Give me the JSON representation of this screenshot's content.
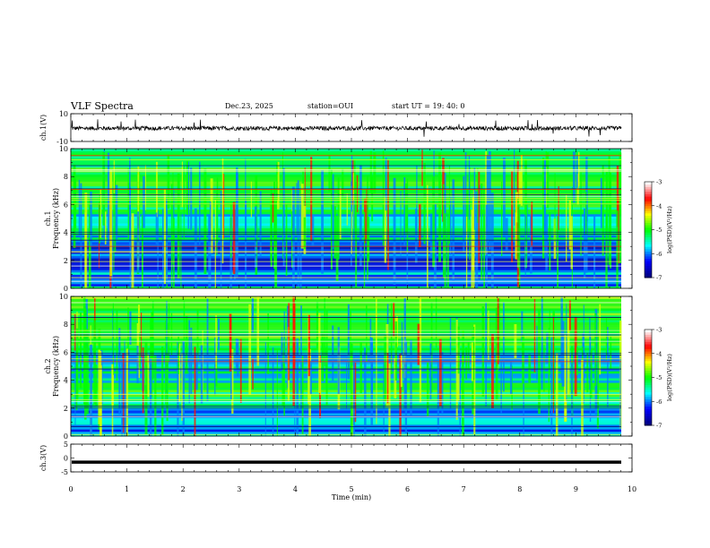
{
  "header": {
    "title": "VLF Spectra",
    "date": "Dec.23, 2025",
    "station": "station=OUI",
    "start_ut": "start  UT =   19: 40: 0"
  },
  "chart_data": [
    {
      "type": "line",
      "name": "ch1-waveform",
      "ylabel": "ch.1(V)",
      "ylim": [
        -10,
        10
      ],
      "yticks": [
        "10",
        "-10"
      ],
      "xlim": [
        0,
        10
      ],
      "description_values": {
        "baseline_v": -0.5,
        "noise_amplitude_v": 1.5
      }
    },
    {
      "type": "heatmap",
      "name": "ch1-spectrogram",
      "ylabel_line1": "ch.1",
      "ylabel_line2": "Frequency (kHz)",
      "ylim": [
        0,
        10
      ],
      "yticks": [
        "0",
        "2",
        "4",
        "6",
        "8",
        "10"
      ],
      "xlim": [
        0,
        10
      ],
      "colorbar": {
        "label": "log(PSD)(V²/Hz)",
        "range": [
          -7,
          -3
        ],
        "ticks": [
          "-3",
          "-4",
          "-5",
          "-6",
          "-7"
        ]
      }
    },
    {
      "type": "heatmap",
      "name": "ch2-spectrogram",
      "ylabel_line1": "ch.2",
      "ylabel_line2": "Frequency (kHz)",
      "ylim": [
        0,
        10
      ],
      "yticks": [
        "0",
        "2",
        "4",
        "6",
        "8",
        "10"
      ],
      "xlim": [
        0,
        10
      ],
      "colorbar": {
        "label": "log(PSD)(V²/Hz)",
        "range": [
          -7,
          -3
        ],
        "ticks": [
          "-3",
          "-4",
          "-5",
          "-6",
          "-7"
        ]
      }
    },
    {
      "type": "line",
      "name": "ch3-waveform",
      "ylabel": "ch.3(V)",
      "ylim": [
        -5,
        5
      ],
      "yticks": [
        "5",
        "0",
        "-5"
      ],
      "xlim": [
        0,
        10
      ],
      "description_values": {
        "level_v": -1.5
      }
    }
  ],
  "xaxis": {
    "label": "Time (min)",
    "ticks": [
      "0",
      "1",
      "2",
      "3",
      "4",
      "5",
      "6",
      "7",
      "8",
      "9",
      "10"
    ]
  },
  "colors": {
    "background": "#ffffff",
    "axis": "#000000",
    "scale": [
      "#000080",
      "#0000ff",
      "#00ffff",
      "#00ff00",
      "#ffff00",
      "#ff0000",
      "#ffffff"
    ]
  }
}
